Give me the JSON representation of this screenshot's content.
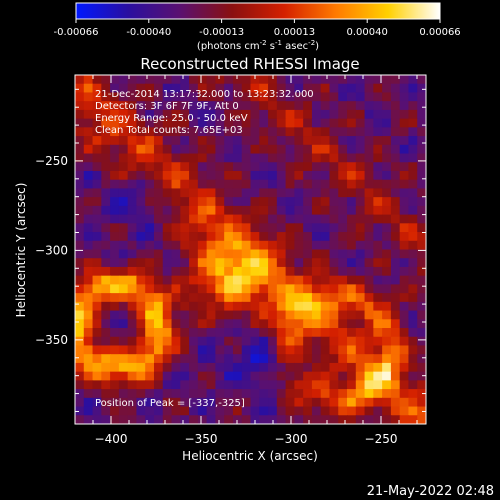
{
  "chart_data": {
    "type": "heatmap",
    "title": "Reconstructed RHESSI Image",
    "xlabel": "Heliocentric X (arcsec)",
    "ylabel": "Heliocentric Y (arcsec)",
    "xlim": [
      -420,
      -225
    ],
    "ylim": [
      -397,
      -202
    ],
    "xticks": [
      -400,
      -350,
      -300,
      -250
    ],
    "yticks": [
      -250,
      -300,
      -350
    ],
    "colorbar": {
      "ticks": [
        "-0.00066",
        "-0.00040",
        "-0.00013",
        "0.00013",
        "0.00040",
        "0.00066"
      ],
      "unit_prefix": "(photons cm",
      "unit_exp1": "-2",
      "unit_mid": " s",
      "unit_exp2": "-1",
      "unit_mid2": " asec",
      "unit_exp3": "-2",
      "unit_suffix": ")",
      "stops": [
        "#0018ff",
        "#2a0fa0",
        "#5a1070",
        "#8a1010",
        "#d42000",
        "#ff7a00",
        "#ffd000",
        "#ffffff"
      ]
    },
    "annotations": {
      "time": "21-Dec-2014 13:17:32.000 to 13:23:32.000",
      "detectors": "Detectors: 3F 6F 7F 9F, Att 0",
      "energy": "Energy Range: 25.0 - 50.0 keV",
      "clean": "Clean     Total counts: 7.65E+03",
      "peak": "Position of Peak = [-337,-325]"
    }
  },
  "footer_date": "21-May-2022 02:48"
}
